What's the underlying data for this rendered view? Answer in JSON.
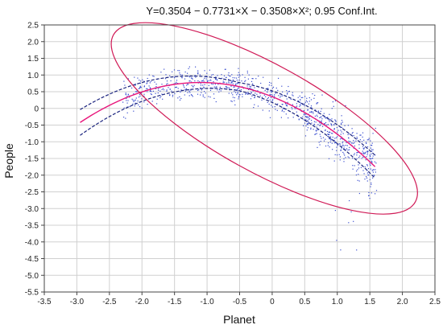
{
  "chart_data": {
    "type": "scatter",
    "title": "Y=0.3504 − 0.7731×X − 0.3508×X²; 0.95 Conf.Int.",
    "xlabel": "Planet",
    "ylabel": "People",
    "xlim": [
      -3.5,
      2.5
    ],
    "ylim": [
      -5.5,
      2.5
    ],
    "xticks": [
      "-3.5",
      "-3.0",
      "-2.5",
      "-2.0",
      "-1.5",
      "-1.0",
      "-0.5",
      "0",
      "0.5",
      "1.0",
      "1.5",
      "2.0",
      "2.5"
    ],
    "yticks": [
      "2.5",
      "2.0",
      "1.5",
      "1.0",
      "0.5",
      "0",
      "-0.5",
      "-1.0",
      "-1.5",
      "-2.0",
      "-2.5",
      "-3.0",
      "-3.5",
      "-4.0",
      "-4.5",
      "-5.0",
      "-5.5"
    ],
    "grid": true,
    "fit": {
      "a": 0.3504,
      "b": -0.7731,
      "c": -0.3508,
      "x_range": [
        -2.95,
        1.58
      ],
      "ci_halfwidth": 0.12
    },
    "ellipse": {
      "center": [
        -0.12,
        -0.3
      ],
      "rx": 2.65,
      "ry": 1.6,
      "angle_deg": 29
    },
    "colors": {
      "fit": "#e8157a",
      "ci": "#1a237e",
      "points": "#3b4fd0",
      "ellipse": "#d01a56",
      "grid": "#d0d0d0"
    },
    "point_count": 950
  }
}
